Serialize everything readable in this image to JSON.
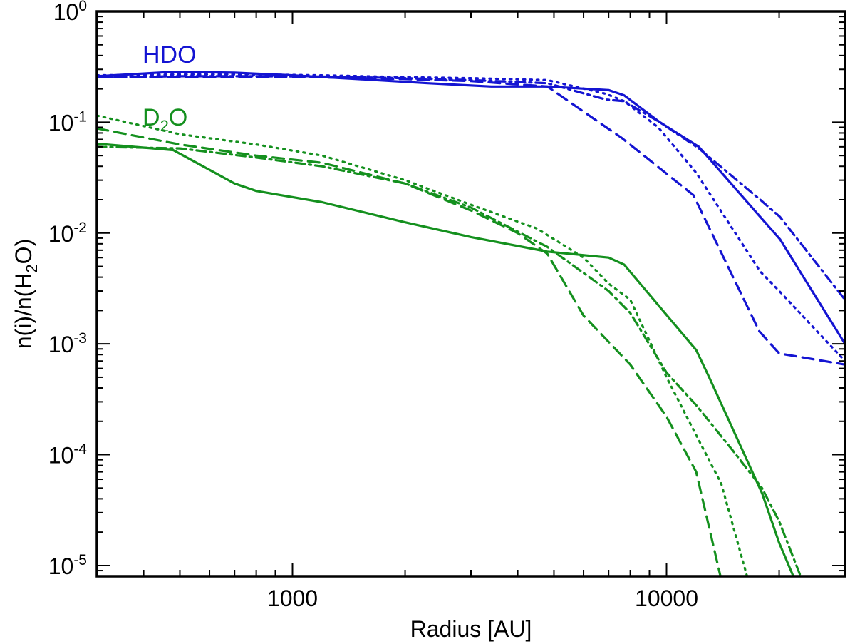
{
  "chart_data": {
    "type": "line",
    "title": "",
    "xlabel": "Radius [AU]",
    "ylabel": {
      "prefix": "n(i)/n(H",
      "sub": "2",
      "suffix": "O)"
    },
    "x_scale": "log",
    "y_scale": "log",
    "xlim": [
      300,
      30000
    ],
    "ylim": [
      8e-06,
      1
    ],
    "x_ticks": [
      {
        "value": 1000,
        "label": "1000"
      },
      {
        "value": 10000,
        "label": "10000"
      }
    ],
    "y_ticks": [
      {
        "value": 1,
        "base": "10",
        "exp": "0"
      },
      {
        "value": 0.1,
        "base": "10",
        "exp": "-1"
      },
      {
        "value": 0.01,
        "base": "10",
        "exp": "-2"
      },
      {
        "value": 0.001,
        "base": "10",
        "exp": "-3"
      },
      {
        "value": 0.0001,
        "base": "10",
        "exp": "-4"
      },
      {
        "value": 1e-05,
        "base": "10",
        "exp": "-5"
      }
    ],
    "colors": {
      "hdo": "#1414d2",
      "d2o": "#14901e"
    },
    "labels": {
      "hdo": {
        "text": "HDO"
      },
      "d2o": {
        "pre": "D",
        "sub": "2",
        "post": "O"
      }
    },
    "series": [
      {
        "name": "HDO solid",
        "group": "hdo",
        "style": "solid",
        "x": [
          300,
          480,
          700,
          1000,
          1500,
          2300,
          3400,
          4800,
          7000,
          7700,
          9600,
          12200,
          17800,
          20100,
          30000
        ],
        "y": [
          0.26,
          0.285,
          0.28,
          0.265,
          0.245,
          0.225,
          0.21,
          0.21,
          0.195,
          0.175,
          0.1,
          0.06,
          0.014,
          0.0088,
          0.001
        ]
      },
      {
        "name": "HDO dashed",
        "group": "hdo",
        "style": "dashed",
        "x": [
          300,
          450,
          700,
          1000,
          1500,
          2000,
          3000,
          4800,
          6900,
          7600,
          11800,
          17700,
          20000,
          30000
        ],
        "y": [
          0.255,
          0.255,
          0.255,
          0.258,
          0.25,
          0.245,
          0.235,
          0.21,
          0.09,
          0.072,
          0.022,
          0.0013,
          0.00082,
          0.00065
        ]
      },
      {
        "name": "HDO dotted",
        "group": "hdo",
        "style": "dotted",
        "x": [
          300,
          500,
          800,
          1200,
          2000,
          3000,
          4800,
          6900,
          7700,
          9500,
          12000,
          17800,
          20000,
          30000
        ],
        "y": [
          0.265,
          0.27,
          0.27,
          0.265,
          0.255,
          0.25,
          0.24,
          0.18,
          0.155,
          0.09,
          0.035,
          0.0045,
          0.003,
          0.0007
        ]
      },
      {
        "name": "HDO dash-dot",
        "group": "hdo",
        "style": "dashdot",
        "x": [
          300,
          500,
          800,
          1200,
          2000,
          3000,
          4800,
          6900,
          7700,
          9600,
          12200,
          17800,
          20100,
          30000
        ],
        "y": [
          0.255,
          0.26,
          0.26,
          0.258,
          0.25,
          0.24,
          0.225,
          0.16,
          0.155,
          0.1,
          0.058,
          0.02,
          0.014,
          0.0025
        ]
      },
      {
        "name": "D2O solid",
        "group": "d2o",
        "style": "solid",
        "x": [
          300,
          480,
          700,
          800,
          1200,
          2000,
          3000,
          4800,
          7000,
          7700,
          12000,
          13000,
          18000,
          20000,
          22000
        ],
        "y": [
          0.064,
          0.056,
          0.028,
          0.024,
          0.019,
          0.0125,
          0.0092,
          0.0068,
          0.006,
          0.0052,
          0.00088,
          0.0005,
          4.5e-05,
          1.6e-05,
          7.5e-06
        ]
      },
      {
        "name": "D2O dashed",
        "group": "d2o",
        "style": "dashed",
        "x": [
          300,
          500,
          800,
          1200,
          2000,
          3000,
          4000,
          4800,
          6000,
          8000,
          10000,
          12000,
          14000
        ],
        "y": [
          0.088,
          0.063,
          0.05,
          0.043,
          0.028,
          0.016,
          0.01,
          0.0065,
          0.0018,
          0.00065,
          0.00022,
          7e-05,
          7.5e-06
        ]
      },
      {
        "name": "D2O dotted",
        "group": "d2o",
        "style": "dotted",
        "x": [
          300,
          500,
          800,
          1200,
          2000,
          3000,
          4500,
          6000,
          7000,
          8000,
          10000,
          12000,
          14000,
          16500
        ],
        "y": [
          0.115,
          0.078,
          0.063,
          0.05,
          0.03,
          0.018,
          0.011,
          0.006,
          0.0035,
          0.0025,
          0.0005,
          0.00015,
          5.5e-05,
          7.5e-06
        ]
      },
      {
        "name": "D2O dash-dot",
        "group": "d2o",
        "style": "dashdot",
        "x": [
          300,
          500,
          800,
          1200,
          2000,
          3000,
          4800,
          7000,
          8000,
          10000,
          12000,
          15000,
          18000,
          20000,
          23000
        ],
        "y": [
          0.06,
          0.058,
          0.048,
          0.04,
          0.028,
          0.017,
          0.0075,
          0.003,
          0.0019,
          0.00055,
          0.00028,
          0.00011,
          5e-05,
          2.5e-05,
          7.5e-06
        ]
      }
    ]
  }
}
